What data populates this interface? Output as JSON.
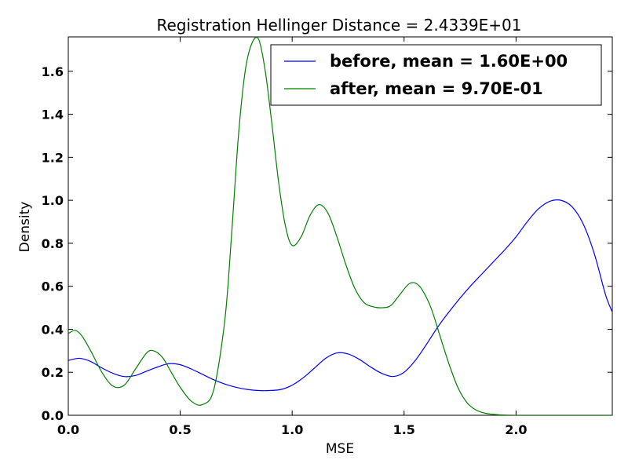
{
  "chart_data": {
    "type": "line",
    "title": "Registration Hellinger Distance = 2.4339E+01",
    "xlabel": "MSE",
    "ylabel": "Density",
    "xlim": [
      0.0,
      2.43
    ],
    "ylim": [
      0.0,
      1.76
    ],
    "xticks": [
      0.0,
      0.5,
      1.0,
      1.5,
      2.0
    ],
    "xtick_labels": [
      "0.0",
      "0.5",
      "1.0",
      "1.5",
      "2.0"
    ],
    "yticks": [
      0.0,
      0.2,
      0.4,
      0.6,
      0.8,
      1.0,
      1.2,
      1.4,
      1.6
    ],
    "ytick_labels": [
      "0.0",
      "0.2",
      "0.4",
      "0.6",
      "0.8",
      "1.0",
      "1.2",
      "1.4",
      "1.6"
    ],
    "grid": false,
    "legend_position": "top-right",
    "series": [
      {
        "name": "before, mean = 1.60E+00",
        "color": "#0000ff",
        "x": [
          0.0,
          0.05,
          0.1,
          0.15,
          0.2,
          0.25,
          0.3,
          0.35,
          0.4,
          0.45,
          0.5,
          0.55,
          0.6,
          0.65,
          0.7,
          0.75,
          0.8,
          0.85,
          0.9,
          0.95,
          1.0,
          1.05,
          1.1,
          1.15,
          1.2,
          1.25,
          1.3,
          1.35,
          1.4,
          1.45,
          1.5,
          1.55,
          1.6,
          1.65,
          1.7,
          1.75,
          1.8,
          1.85,
          1.9,
          1.95,
          2.0,
          2.05,
          2.1,
          2.15,
          2.2,
          2.25,
          2.3,
          2.35,
          2.4,
          2.43
        ],
        "y": [
          0.255,
          0.265,
          0.25,
          0.22,
          0.195,
          0.18,
          0.185,
          0.205,
          0.225,
          0.24,
          0.235,
          0.215,
          0.19,
          0.165,
          0.145,
          0.13,
          0.12,
          0.115,
          0.115,
          0.12,
          0.14,
          0.175,
          0.22,
          0.265,
          0.29,
          0.285,
          0.26,
          0.225,
          0.195,
          0.18,
          0.2,
          0.255,
          0.33,
          0.41,
          0.48,
          0.545,
          0.605,
          0.66,
          0.715,
          0.77,
          0.83,
          0.9,
          0.96,
          0.995,
          1.0,
          0.97,
          0.89,
          0.75,
          0.56,
          0.48
        ]
      },
      {
        "name": "after, mean = 9.70E-01",
        "color": "#008000",
        "x": [
          0.0,
          0.03,
          0.06,
          0.1,
          0.15,
          0.2,
          0.25,
          0.3,
          0.35,
          0.38,
          0.42,
          0.46,
          0.5,
          0.55,
          0.6,
          0.65,
          0.7,
          0.73,
          0.76,
          0.79,
          0.82,
          0.85,
          0.88,
          0.91,
          0.94,
          0.97,
          1.0,
          1.04,
          1.08,
          1.12,
          1.16,
          1.2,
          1.24,
          1.28,
          1.32,
          1.36,
          1.4,
          1.44,
          1.48,
          1.52,
          1.55,
          1.58,
          1.62,
          1.66,
          1.7,
          1.74,
          1.78,
          1.82,
          1.86,
          1.9,
          1.95,
          2.0,
          2.1,
          2.2,
          2.3,
          2.43
        ],
        "y": [
          0.38,
          0.395,
          0.37,
          0.3,
          0.2,
          0.135,
          0.14,
          0.215,
          0.29,
          0.3,
          0.27,
          0.2,
          0.13,
          0.065,
          0.05,
          0.12,
          0.45,
          0.85,
          1.3,
          1.6,
          1.73,
          1.75,
          1.6,
          1.35,
          1.08,
          0.88,
          0.79,
          0.83,
          0.93,
          0.98,
          0.94,
          0.83,
          0.7,
          0.59,
          0.525,
          0.505,
          0.5,
          0.51,
          0.56,
          0.61,
          0.615,
          0.585,
          0.5,
          0.37,
          0.24,
          0.13,
          0.06,
          0.025,
          0.01,
          0.004,
          0.001,
          0.0,
          0.0,
          0.0,
          0.0,
          0.0
        ]
      }
    ]
  }
}
